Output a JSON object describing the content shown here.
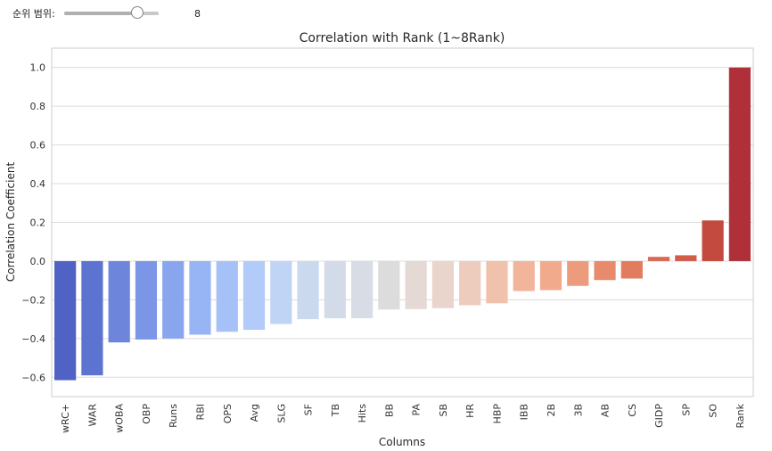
{
  "slider": {
    "label": "순위 범위:",
    "value": "8",
    "min": 1,
    "max": 10,
    "current": 8
  },
  "chart_data": {
    "type": "bar",
    "title": "Correlation with Rank (1~8Rank)",
    "xlabel": "Columns",
    "ylabel": "Correlation Coefficient",
    "ylim": [
      -0.7,
      1.1
    ],
    "yticks": [
      -0.6,
      -0.4,
      -0.2,
      0.0,
      0.2,
      0.4,
      0.6,
      0.8,
      1.0
    ],
    "ytick_labels": [
      "−0.6",
      "−0.4",
      "−0.2",
      "0.0",
      "0.2",
      "0.4",
      "0.6",
      "0.8",
      "1.0"
    ],
    "grid": "horizontal",
    "palette": "coolwarm",
    "categories": [
      "wRC+",
      "WAR",
      "wOBA",
      "OBP",
      "Runs",
      "RBI",
      "OPS",
      "Avg",
      "SLG",
      "SF",
      "TB",
      "Hits",
      "BB",
      "PA",
      "SB",
      "HR",
      "HBP",
      "IBB",
      "2B",
      "3B",
      "AB",
      "CS",
      "GIDP",
      "SP",
      "SO",
      "Rank"
    ],
    "values": [
      -0.615,
      -0.59,
      -0.42,
      -0.405,
      -0.4,
      -0.38,
      -0.365,
      -0.355,
      -0.325,
      -0.3,
      -0.295,
      -0.295,
      -0.25,
      -0.248,
      -0.243,
      -0.228,
      -0.218,
      -0.155,
      -0.15,
      -0.128,
      -0.098,
      -0.09,
      0.022,
      0.03,
      0.21,
      1.0
    ],
    "colors": [
      "#5062c3",
      "#5d73d0",
      "#6d86dc",
      "#7b96e6",
      "#88a5ee",
      "#97b4f4",
      "#a5c1f7",
      "#b2cbf9",
      "#c0d4f5",
      "#cbd9ef",
      "#d3dbe8",
      "#d8dce4",
      "#dcdcdd",
      "#e4d9d4",
      "#e9d5cb",
      "#edcbbd",
      "#f0c1ab",
      "#f1b59b",
      "#f1aa8c",
      "#ed9b7d",
      "#e88b6d",
      "#e17c5f",
      "#d86a52",
      "#d05d47",
      "#c24a3e",
      "#b03039"
    ]
  }
}
